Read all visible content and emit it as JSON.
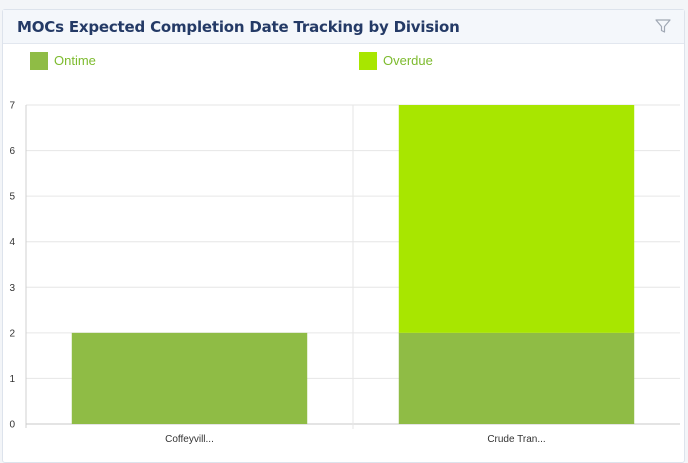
{
  "widget": {
    "title": "MOCs Expected Completion Date Tracking by Division",
    "filter_icon": "filter-icon"
  },
  "colors": {
    "ontime": "#8fbc45",
    "overdue": "#a8e600",
    "title": "#243a66",
    "legend_text": "#7dbb2e"
  },
  "chart_data": {
    "type": "bar",
    "stacked": true,
    "categories": [
      "Coffeyvill...",
      "Crude Tran..."
    ],
    "series": [
      {
        "name": "Ontime",
        "values": [
          2,
          2
        ]
      },
      {
        "name": "Overdue",
        "values": [
          0,
          5
        ]
      }
    ],
    "title": "",
    "xlabel": "",
    "ylabel": "",
    "ylim": [
      0,
      7
    ],
    "yticks": [
      "0",
      "1",
      "2",
      "3",
      "4",
      "5",
      "6",
      "7"
    ],
    "grid": true,
    "legend": "top-left"
  }
}
